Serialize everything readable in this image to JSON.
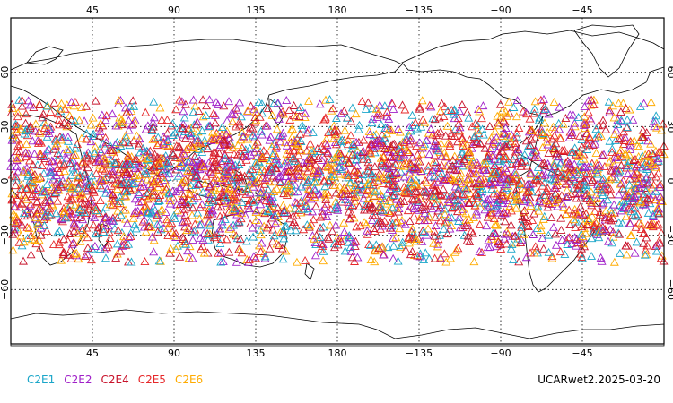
{
  "map": {
    "projection": "cylindrical-equidistant",
    "lon_center": 180,
    "lat_range": [
      -90,
      90
    ],
    "grid_style": "dotted",
    "grid_lons": [
      45,
      90,
      135,
      180,
      225,
      270,
      315
    ],
    "grid_lats": [
      60,
      30,
      0,
      -30,
      -60
    ],
    "top_labels": [
      "45",
      "90",
      "135",
      "180",
      "−135",
      "−90",
      "−45"
    ],
    "bottom_labels": [
      "45",
      "90",
      "135",
      "180",
      "−135",
      "−90",
      "−45"
    ],
    "left_labels": [
      "60",
      "30",
      "0",
      "−30",
      "−60"
    ],
    "right_labels": [
      "60",
      "30",
      "0",
      "−30",
      "−60"
    ],
    "marker_shape": "open-triangle",
    "observation_band_lat": [
      -45,
      45
    ]
  },
  "legend": [
    {
      "name": "C2E1",
      "color": "#1aa6c9"
    },
    {
      "name": "C2E2",
      "color": "#a020c8"
    },
    {
      "name": "C2E4",
      "color": "#c8142c"
    },
    {
      "name": "C2E5",
      "color": "#e6282a"
    },
    {
      "name": "C2E6",
      "color": "#ffab00"
    }
  ],
  "footer": {
    "tag": "UCARwet2.2025-03-20"
  }
}
